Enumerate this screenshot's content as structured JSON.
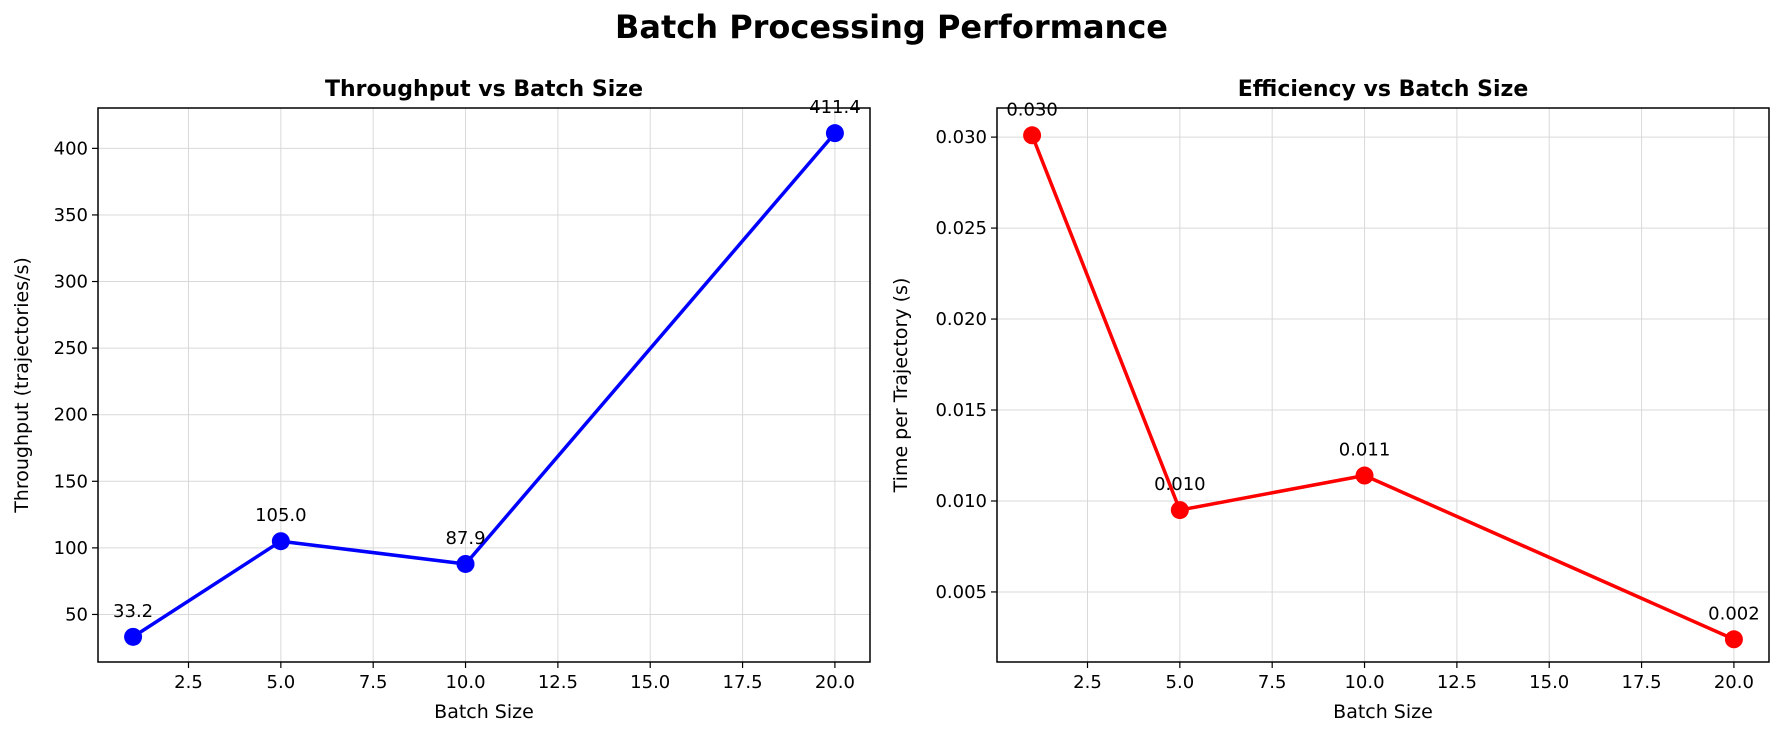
{
  "figure": {
    "suptitle": "Batch Processing Performance"
  },
  "colors": {
    "left_series": "#0000ff",
    "right_series": "#ff0000",
    "grid": "#d9d9d9",
    "axis": "#000000"
  },
  "chart_data": [
    {
      "type": "line",
      "title": "Throughput vs Batch Size",
      "xlabel": "Batch Size",
      "ylabel": "Throughput (trajectories/s)",
      "x": [
        1,
        5,
        10,
        20
      ],
      "series": [
        {
          "values": [
            33.2,
            105.0,
            87.9,
            411.4
          ]
        }
      ],
      "point_labels": [
        "33.2",
        "105.0",
        "87.9",
        "411.4"
      ],
      "xlim": [
        0.05,
        20.95
      ],
      "ylim": [
        14.3,
        430.3
      ],
      "xticks": [
        2.5,
        5.0,
        7.5,
        10.0,
        12.5,
        15.0,
        17.5,
        20.0
      ],
      "xtick_labels": [
        "2.5",
        "5.0",
        "7.5",
        "10.0",
        "12.5",
        "15.0",
        "17.5",
        "20.0"
      ],
      "yticks": [
        50,
        100,
        150,
        200,
        250,
        300,
        350,
        400
      ],
      "ytick_labels": [
        "50",
        "100",
        "150",
        "200",
        "250",
        "300",
        "350",
        "400"
      ],
      "grid": true,
      "color": "#0000ff"
    },
    {
      "type": "line",
      "title": "Efficiency vs Batch Size",
      "xlabel": "Batch Size",
      "ylabel": "Time per Trajectory (s)",
      "x": [
        1,
        5,
        10,
        20
      ],
      "series": [
        {
          "values": [
            0.0301,
            0.0095,
            0.0114,
            0.0024
          ]
        }
      ],
      "point_labels": [
        "0.030",
        "0.010",
        "0.011",
        "0.002"
      ],
      "xlim": [
        0.05,
        20.95
      ],
      "ylim": [
        0.00115,
        0.0316
      ],
      "xticks": [
        2.5,
        5.0,
        7.5,
        10.0,
        12.5,
        15.0,
        17.5,
        20.0
      ],
      "xtick_labels": [
        "2.5",
        "5.0",
        "7.5",
        "10.0",
        "12.5",
        "15.0",
        "17.5",
        "20.0"
      ],
      "yticks": [
        0.005,
        0.01,
        0.015,
        0.02,
        0.025,
        0.03
      ],
      "ytick_labels": [
        "0.005",
        "0.010",
        "0.015",
        "0.020",
        "0.025",
        "0.030"
      ],
      "grid": true,
      "color": "#ff0000"
    }
  ]
}
